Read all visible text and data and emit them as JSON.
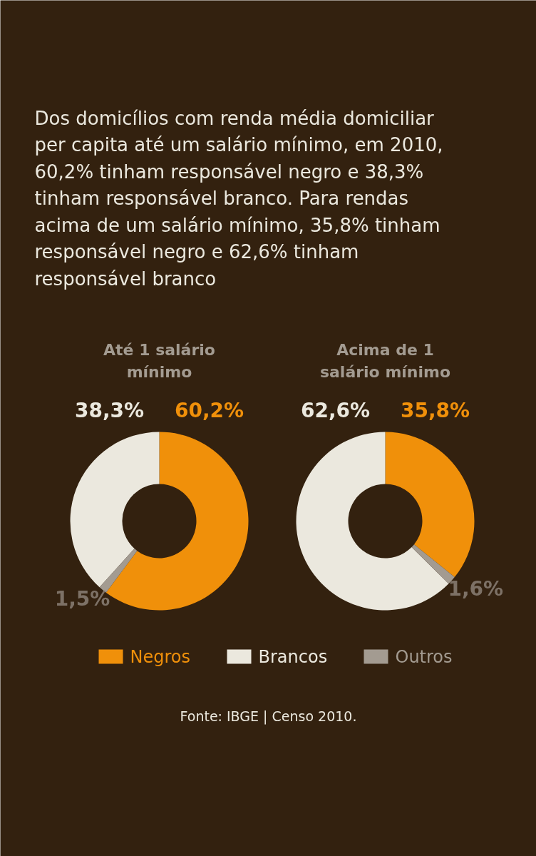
{
  "chart_data": [
    {
      "type": "donut",
      "title": "Até 1 salário mínimo",
      "annotations": [
        "Dos domicílios com renda média domiciliar per capita até um salário mínimo, em 2010, 60,2% tinham responsável negro e 38,3% tinham responsável branco. Para rendas acima de um salário mínimo, 35,8% tinham responsável negro e 62,6% tinham responsável branco"
      ],
      "categories": [
        "Negros",
        "Brancos",
        "Outros"
      ],
      "values": [
        60.2,
        38.3,
        1.5
      ],
      "value_labels": [
        "60,2%",
        "38,3%",
        "1,5%"
      ],
      "colors": [
        "#f0900a",
        "#ebe8de",
        "#a39b91"
      ],
      "legend": "bottom"
    },
    {
      "type": "donut",
      "title": "Acima de 1 salário mínimo",
      "annotations": [
        "Fonte: IBGE | Censo 2010."
      ],
      "categories": [
        null,
        null,
        null
      ],
      "values": [
        35.8,
        62.6,
        1.6
      ],
      "value_labels": [
        "35,8%",
        "62,6%",
        "1,6%"
      ],
      "colors": [
        "#f0900a",
        "#ebe8de",
        "#a39b91"
      ]
    }
  ]
}
